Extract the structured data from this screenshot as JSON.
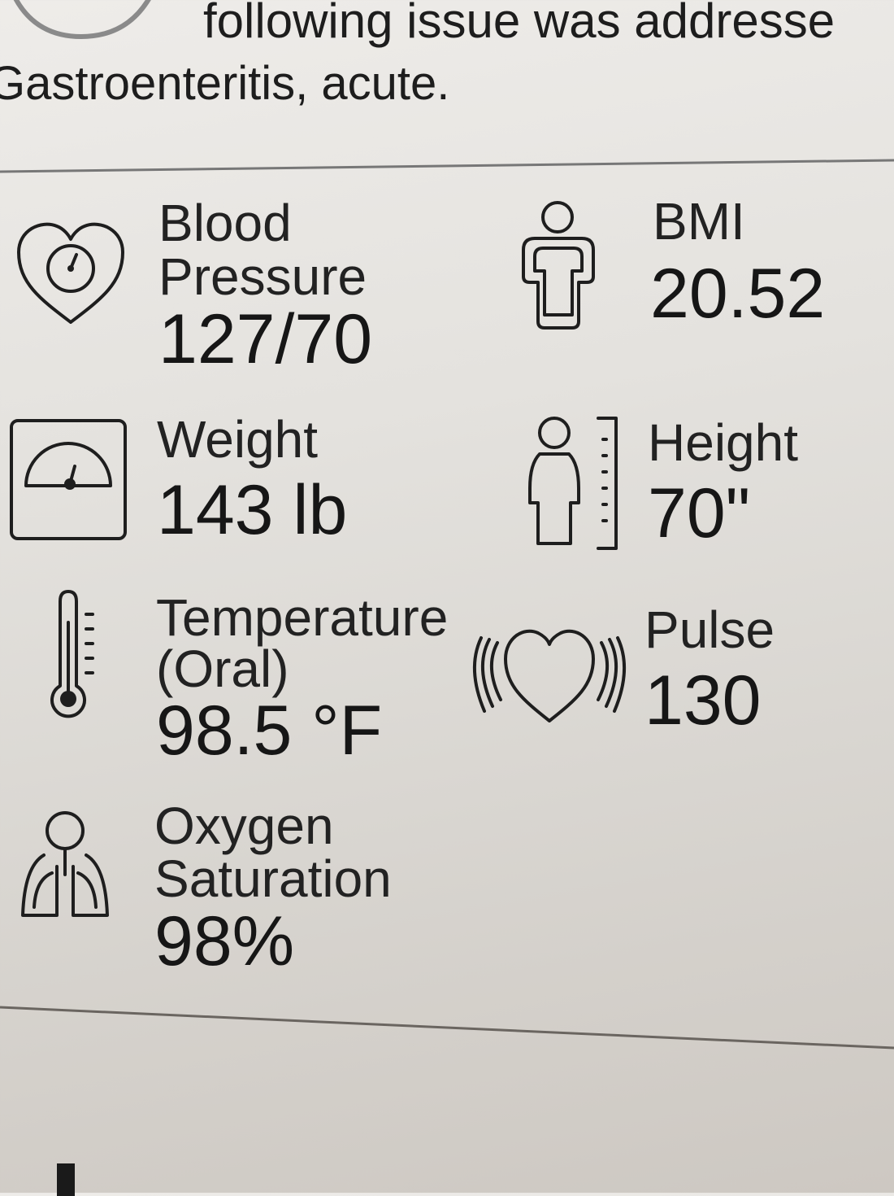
{
  "header": {
    "intro_line": "following issue was addresse",
    "diagnosis": "Gastroenteritis, acute."
  },
  "vitals": [
    {
      "label_lines": [
        "Blood",
        "Pressure"
      ],
      "value": "127/70",
      "icon": "heart-gauge-icon"
    },
    {
      "label_lines": [
        "BMI"
      ],
      "value": "20.52",
      "icon": "body-outline-icon"
    },
    {
      "label_lines": [
        "Weight"
      ],
      "value": "143 lb",
      "icon": "scale-icon"
    },
    {
      "label_lines": [
        "Height"
      ],
      "value": "70\"",
      "icon": "person-ruler-icon"
    },
    {
      "label_lines": [
        "Temperature",
        "(Oral)"
      ],
      "value": "98.5 °F",
      "icon": "thermometer-icon"
    },
    {
      "label_lines": [
        "Pulse"
      ],
      "value": "130",
      "icon": "pulse-heart-icon"
    },
    {
      "label_lines": [
        "Oxygen",
        "Saturation"
      ],
      "value": "98%",
      "icon": "lungs-icon"
    }
  ]
}
